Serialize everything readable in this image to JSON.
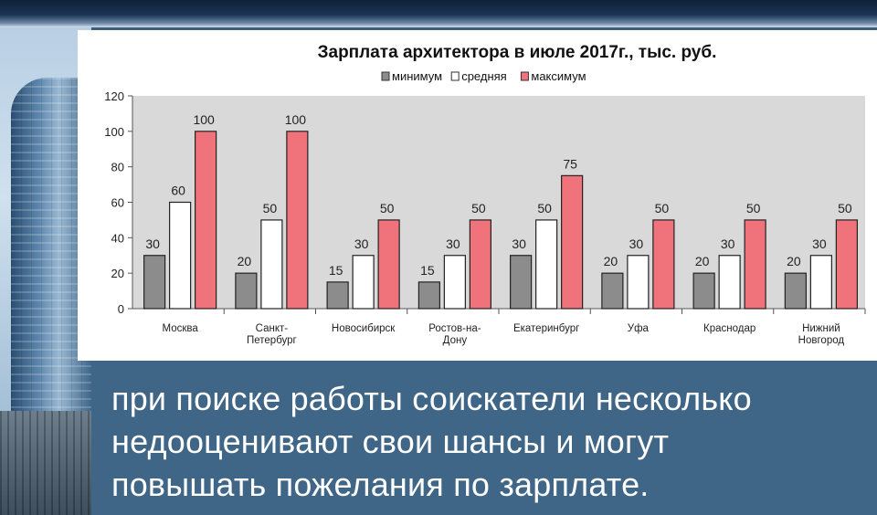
{
  "chart_data": {
    "type": "bar",
    "title": "Зарплата архитектора в июле 2017г., тыс. руб.",
    "legend_position": "top",
    "ylim": [
      0,
      120
    ],
    "yticks": [
      0,
      20,
      40,
      60,
      80,
      100,
      120
    ],
    "grid": false,
    "categories": [
      [
        "Москва"
      ],
      [
        "Санкт-",
        "Петербург"
      ],
      [
        "Новосибирск"
      ],
      [
        "Ростов-на-",
        "Дону"
      ],
      [
        "Екатеринбург"
      ],
      [
        "Уфа"
      ],
      [
        "Краснодар"
      ],
      [
        "Нижний",
        "Новгород"
      ]
    ],
    "series": [
      {
        "name": "минимум",
        "color": "#8c8c8c",
        "values": [
          30,
          20,
          15,
          15,
          30,
          20,
          20,
          20
        ]
      },
      {
        "name": "средняя",
        "color": "#ffffff",
        "values": [
          60,
          50,
          30,
          30,
          50,
          30,
          30,
          30
        ]
      },
      {
        "name": "максимум",
        "color": "#f0737b",
        "values": [
          100,
          100,
          50,
          50,
          75,
          50,
          50,
          50
        ]
      }
    ]
  },
  "caption": {
    "lines": [
      "при поиске работы соискатели несколько",
      "недооценивают свои шансы и могут",
      "повышать пожелания по зарплате."
    ]
  }
}
